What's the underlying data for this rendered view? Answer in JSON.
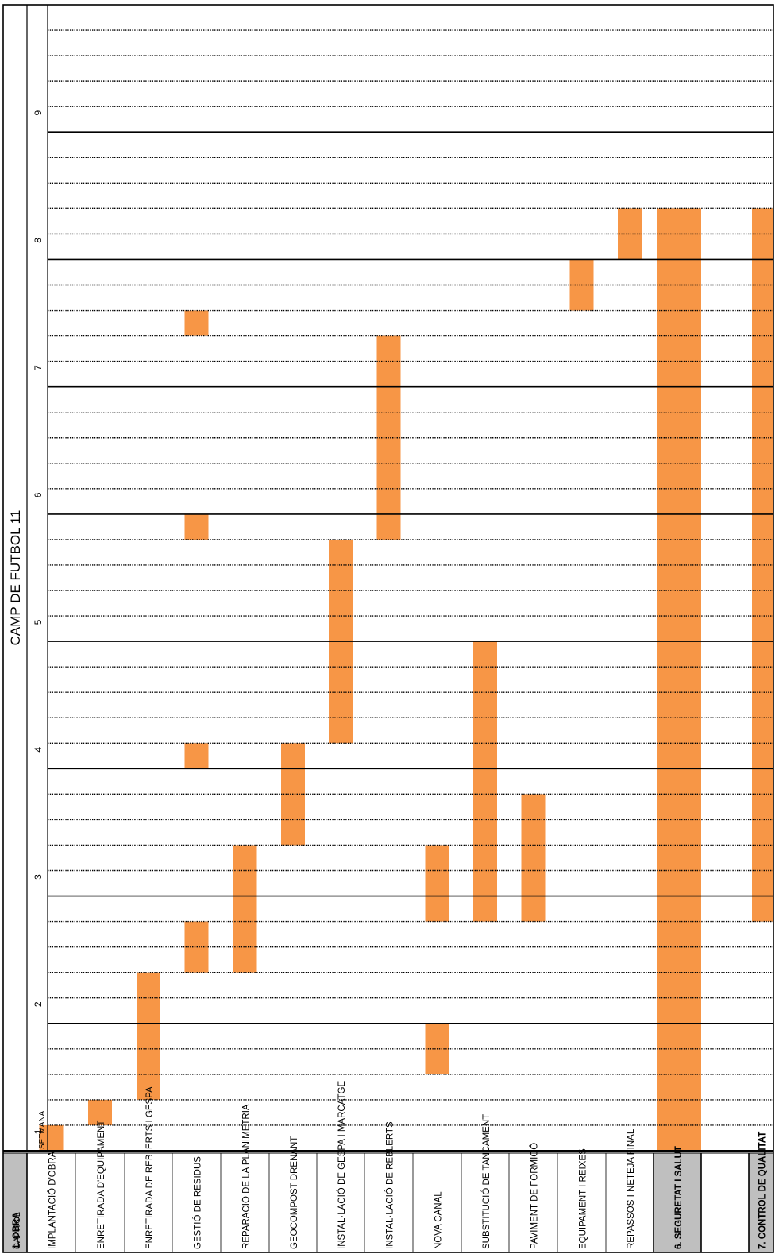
{
  "chart_data": {
    "type": "gantt",
    "title": "CAMP DE FUTBOL 11",
    "column_header": "CAPÍTOL",
    "week_label": "SETMANA",
    "weeks": [
      "1",
      "2",
      "3",
      "4",
      "5",
      "6",
      "7",
      "8",
      "9"
    ],
    "days_per_week": 5,
    "colors": {
      "bar": "#F79646",
      "chapter_fill": "#BFBFBF",
      "grid": "#000000"
    },
    "rows": [
      {
        "label": "1. OBRA",
        "kind": "chapter",
        "bars": []
      },
      {
        "label": "IMPLANTACIÓ D'OBRA",
        "kind": "task",
        "bars": [
          [
            0,
            1
          ]
        ]
      },
      {
        "label": "ENRETIRADA D'EQUIPAMENT",
        "kind": "task",
        "bars": [
          [
            1,
            2
          ]
        ]
      },
      {
        "label": "ENRETIRADA DE REBLERTS I GESPA",
        "kind": "task",
        "bars": [
          [
            2,
            7
          ]
        ]
      },
      {
        "label": "GESTIÓ DE RESIDUS",
        "kind": "task",
        "bars": [
          [
            7,
            9
          ],
          [
            15,
            16
          ],
          [
            24,
            25
          ],
          [
            32,
            33
          ]
        ]
      },
      {
        "label": "REPARACIÓ DE LA PLANIMETRIA",
        "kind": "task",
        "bars": [
          [
            7,
            12
          ]
        ]
      },
      {
        "label": "GEOCOMPOST DRENANT",
        "kind": "task",
        "bars": [
          [
            12,
            16
          ]
        ]
      },
      {
        "label": "INSTAL·LACIÓ DE GESPA I MARCATGE",
        "kind": "task",
        "bars": [
          [
            16,
            24
          ]
        ]
      },
      {
        "label": "INSTAL·LACIÓ DE REBLERTS",
        "kind": "task",
        "bars": [
          [
            24,
            32
          ]
        ]
      },
      {
        "label": "NOVA CANAL",
        "kind": "task",
        "bars": [
          [
            3,
            5
          ],
          [
            9,
            12
          ]
        ]
      },
      {
        "label": "SUBSTITUCIÓ DE TANCAMENT",
        "kind": "task",
        "bars": [
          [
            9,
            20
          ]
        ]
      },
      {
        "label": "PAVIMENT DE FORMIGÓ",
        "kind": "task",
        "bars": [
          [
            9,
            14
          ]
        ]
      },
      {
        "label": "EQUIPAMENT I REIXES",
        "kind": "task",
        "bars": [
          [
            33,
            35
          ]
        ]
      },
      {
        "label": "REPASSOS I NETEJA FINAL",
        "kind": "task",
        "bars": [
          [
            35,
            37
          ]
        ]
      },
      {
        "label": "6. SEGURETAT I SALUT",
        "kind": "chapter",
        "bars": [
          [
            0,
            37
          ]
        ]
      },
      {
        "label": "",
        "kind": "spacer",
        "bars": []
      },
      {
        "label": "7. CONTROL DE QUALITAT",
        "kind": "chapter",
        "bars": [
          [
            9,
            37
          ]
        ]
      }
    ]
  }
}
